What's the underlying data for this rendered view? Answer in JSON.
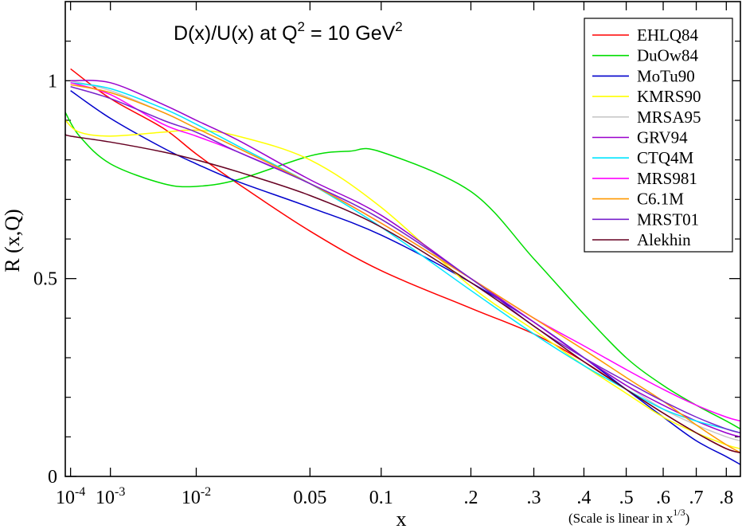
{
  "chart_data": {
    "type": "line",
    "title": {
      "prefix": "D(x)/U(x) at Q",
      "sup1": "2",
      "middle": " = 10 GeV",
      "sup2": "2"
    },
    "xlabel": "x",
    "ylabel": "R (x,Q)",
    "x_scale_note": {
      "text": "(Scale is linear in x",
      "sup": "1/3",
      "close": ")"
    },
    "xlim": [
      6.08e-05,
      0.85
    ],
    "ylim": [
      0,
      1.2
    ],
    "x_ticks": [
      {
        "value": 0.0001,
        "base": "10",
        "exp": "-4"
      },
      {
        "value": 0.001,
        "base": "10",
        "exp": "-3"
      },
      {
        "value": 0.01,
        "base": "10",
        "exp": "-2"
      },
      {
        "value": 0.05,
        "label": "0.05"
      },
      {
        "value": 0.1,
        "label": "0.1"
      },
      {
        "value": 0.2,
        "label": ".2"
      },
      {
        "value": 0.3,
        "label": ".3"
      },
      {
        "value": 0.4,
        "label": ".4"
      },
      {
        "value": 0.5,
        "label": ".5"
      },
      {
        "value": 0.6,
        "label": ".6"
      },
      {
        "value": 0.7,
        "label": ".7"
      },
      {
        "value": 0.8,
        "label": ".8"
      }
    ],
    "y_ticks": [
      {
        "value": 0,
        "label": "0"
      },
      {
        "value": 0.5,
        "label": "0.5"
      },
      {
        "value": 1,
        "label": "1"
      }
    ],
    "y_minor_ticks": [
      0.1,
      0.2,
      0.3,
      0.4,
      0.6,
      0.7,
      0.8,
      0.9,
      1.1
    ],
    "legend_position": "top-right",
    "series": [
      {
        "name": "EHLQ84",
        "color": "#ff0000",
        "x": [
          0.0001,
          0.001,
          0.005,
          0.01,
          0.02,
          0.05,
          0.1,
          0.2,
          0.3,
          0.4,
          0.5,
          0.6,
          0.7,
          0.8,
          0.85
        ],
        "y": [
          1.03,
          0.955,
          0.88,
          0.815,
          0.74,
          0.62,
          0.52,
          0.425,
          0.36,
          0.29,
          0.22,
          0.16,
          0.11,
          0.07,
          0.06
        ]
      },
      {
        "name": "DuOw84",
        "color": "#00dd00",
        "x": [
          6.08e-05,
          0.0002,
          0.001,
          0.005,
          0.01,
          0.02,
          0.05,
          0.075,
          0.1,
          0.2,
          0.3,
          0.4,
          0.5,
          0.6,
          0.7,
          0.8,
          0.85
        ],
        "y": [
          0.92,
          0.86,
          0.79,
          0.74,
          0.733,
          0.75,
          0.81,
          0.822,
          0.82,
          0.72,
          0.55,
          0.41,
          0.3,
          0.23,
          0.18,
          0.14,
          0.12
        ]
      },
      {
        "name": "MoTu90",
        "color": "#0000cc",
        "x": [
          0.0001,
          0.001,
          0.005,
          0.01,
          0.02,
          0.05,
          0.1,
          0.2,
          0.3,
          0.4,
          0.5,
          0.6,
          0.7,
          0.8,
          0.85
        ],
        "y": [
          0.975,
          0.905,
          0.83,
          0.79,
          0.745,
          0.68,
          0.61,
          0.49,
          0.39,
          0.3,
          0.22,
          0.15,
          0.09,
          0.05,
          0.03
        ]
      },
      {
        "name": "KMRS90",
        "color": "#ffff00",
        "x": [
          6.08e-05,
          0.0002,
          0.001,
          0.005,
          0.01,
          0.02,
          0.05,
          0.1,
          0.2,
          0.3,
          0.4,
          0.5,
          0.6,
          0.7,
          0.8,
          0.85
        ],
        "y": [
          0.9,
          0.87,
          0.86,
          0.87,
          0.875,
          0.86,
          0.8,
          0.68,
          0.48,
          0.37,
          0.28,
          0.21,
          0.15,
          0.11,
          0.08,
          0.07
        ]
      },
      {
        "name": "MRSA95",
        "color": "#c8c8c8",
        "x": [
          0.0001,
          0.001,
          0.005,
          0.01,
          0.02,
          0.05,
          0.1,
          0.2,
          0.3,
          0.4,
          0.5,
          0.6,
          0.7,
          0.8,
          0.85
        ],
        "y": [
          1.0,
          0.975,
          0.92,
          0.88,
          0.83,
          0.74,
          0.65,
          0.5,
          0.39,
          0.3,
          0.23,
          0.17,
          0.13,
          0.1,
          0.09
        ]
      },
      {
        "name": "GRV94",
        "color": "#9900cc",
        "x": [
          0.0001,
          0.001,
          0.005,
          0.01,
          0.02,
          0.05,
          0.1,
          0.2,
          0.3,
          0.4,
          0.5,
          0.6,
          0.7,
          0.8,
          0.85
        ],
        "y": [
          1.0,
          0.995,
          0.94,
          0.9,
          0.85,
          0.75,
          0.66,
          0.5,
          0.39,
          0.3,
          0.23,
          0.18,
          0.14,
          0.11,
          0.1
        ]
      },
      {
        "name": "CTQ4M",
        "color": "#00e5ff",
        "x": [
          0.0001,
          0.001,
          0.005,
          0.01,
          0.02,
          0.05,
          0.1,
          0.2,
          0.3,
          0.4,
          0.5,
          0.6,
          0.7,
          0.8,
          0.85
        ],
        "y": [
          0.995,
          0.98,
          0.93,
          0.89,
          0.835,
          0.74,
          0.63,
          0.47,
          0.36,
          0.28,
          0.22,
          0.17,
          0.14,
          0.12,
          0.11
        ]
      },
      {
        "name": "MRS981",
        "color": "#ff00ff",
        "x": [
          0.0001,
          0.001,
          0.005,
          0.01,
          0.02,
          0.05,
          0.1,
          0.2,
          0.3,
          0.4,
          0.5,
          0.6,
          0.7,
          0.8,
          0.85
        ],
        "y": [
          0.995,
          0.965,
          0.89,
          0.86,
          0.82,
          0.74,
          0.64,
          0.5,
          0.4,
          0.33,
          0.27,
          0.22,
          0.18,
          0.15,
          0.14
        ]
      },
      {
        "name": "C6.1M",
        "color": "#ff9900",
        "x": [
          0.0001,
          0.001,
          0.005,
          0.01,
          0.02,
          0.05,
          0.1,
          0.2,
          0.3,
          0.4,
          0.5,
          0.6,
          0.7,
          0.8,
          0.85
        ],
        "y": [
          0.99,
          0.97,
          0.92,
          0.88,
          0.83,
          0.74,
          0.64,
          0.5,
          0.4,
          0.32,
          0.25,
          0.19,
          0.13,
          0.08,
          0.06
        ]
      },
      {
        "name": "MRST01",
        "color": "#7722cc",
        "x": [
          0.0001,
          0.001,
          0.005,
          0.01,
          0.02,
          0.05,
          0.1,
          0.2,
          0.3,
          0.4,
          0.5,
          0.6,
          0.7,
          0.8,
          0.85
        ],
        "y": [
          0.985,
          0.955,
          0.9,
          0.87,
          0.82,
          0.74,
          0.65,
          0.5,
          0.38,
          0.3,
          0.24,
          0.19,
          0.15,
          0.12,
          0.11
        ]
      },
      {
        "name": "Alekhin",
        "color": "#660022",
        "x": [
          6.08e-05,
          0.0001,
          0.001,
          0.005,
          0.01,
          0.02,
          0.05,
          0.1,
          0.2,
          0.3,
          0.4,
          0.5,
          0.6,
          0.7,
          0.8,
          0.85
        ],
        "y": [
          0.865,
          0.86,
          0.845,
          0.82,
          0.8,
          0.77,
          0.71,
          0.63,
          0.49,
          0.38,
          0.29,
          0.22,
          0.16,
          0.11,
          0.07,
          0.06
        ]
      }
    ]
  }
}
